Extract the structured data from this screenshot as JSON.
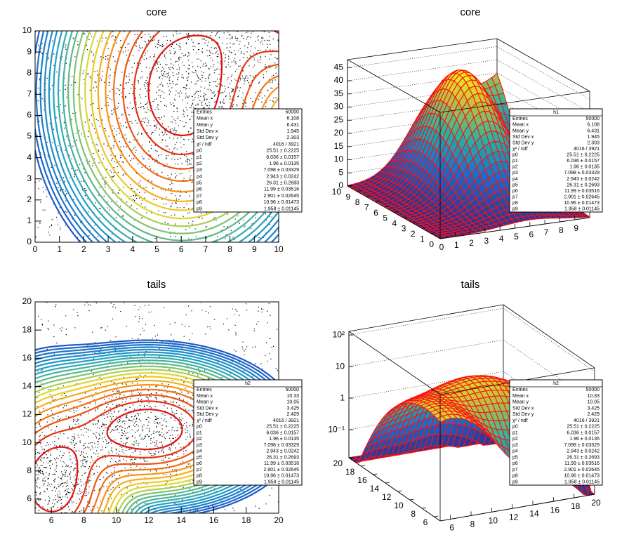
{
  "chart_data": [
    {
      "type": "contour",
      "title": "core",
      "xlim": [
        0,
        10
      ],
      "xticks": [
        0,
        1,
        2,
        3,
        4,
        5,
        6,
        7,
        8,
        9,
        10
      ],
      "ylim": [
        0,
        10
      ],
      "yticks": [
        0,
        1,
        2,
        3,
        4,
        5,
        6,
        7,
        8,
        9,
        10
      ],
      "stats": {
        "rows": [
          [
            "Entries",
            "50000"
          ],
          [
            "Mean x",
            "6.108"
          ],
          [
            "Mean y",
            "6.431"
          ],
          [
            "Std Dev x",
            "1.945"
          ],
          [
            "Std Dev y",
            "2.303"
          ],
          [
            "χ² / ndf",
            "4016 / 3921"
          ],
          [
            "p0",
            "25.51 ± 0.2225"
          ],
          [
            "p1",
            "6.036 ± 0.0157"
          ],
          [
            "p2",
            "1.96 ± 0.0135"
          ],
          [
            "p3",
            "7.098 ± 0.03329"
          ],
          [
            "p4",
            "2.943 ± 0.0242"
          ],
          [
            "p5",
            "26.31 ± 0.2693"
          ],
          [
            "p6",
            "11.99 ± 0.03516"
          ],
          [
            "p7",
            "2.901 ± 0.02645"
          ],
          [
            "p8",
            "10.96 ± 0.01473"
          ],
          [
            "p9",
            "1.958 ± 0.01145"
          ]
        ]
      }
    },
    {
      "type": "surface",
      "title": "core",
      "xlim": [
        0,
        10
      ],
      "xticks": [
        0,
        1,
        2,
        3,
        4,
        5,
        6,
        7,
        8,
        9
      ],
      "ylim": [
        0,
        10
      ],
      "yticks": [
        0,
        1,
        2,
        3,
        4,
        5,
        6,
        7,
        8,
        9,
        10
      ],
      "zlim": [
        0,
        48
      ],
      "zticks": [
        0,
        5,
        10,
        15,
        20,
        25,
        30,
        35,
        40,
        45
      ],
      "stats": {
        "title": "h1",
        "rows": [
          [
            "Entries",
            "50000"
          ],
          [
            "Mean x",
            "6.108"
          ],
          [
            "Mean y",
            "6.431"
          ],
          [
            "Std Dev x",
            "1.945"
          ],
          [
            "Std Dev y",
            "2.303"
          ],
          [
            "χ² / ndf",
            "4016 / 3921"
          ],
          [
            "p0",
            "25.51 ± 0.2225"
          ],
          [
            "p1",
            "6.036 ± 0.0157"
          ],
          [
            "p2",
            "1.96 ± 0.0135"
          ],
          [
            "p3",
            "7.098 ± 0.03329"
          ],
          [
            "p4",
            "2.943 ± 0.0242"
          ],
          [
            "p5",
            "26.31 ± 0.2693"
          ],
          [
            "p6",
            "11.99 ± 0.03516"
          ],
          [
            "p7",
            "2.901 ± 0.02645"
          ],
          [
            "p8",
            "10.96 ± 0.01473"
          ],
          [
            "p9",
            "1.958 ± 0.01145"
          ]
        ]
      }
    },
    {
      "type": "contour",
      "title": "tails",
      "xlim": [
        5,
        20
      ],
      "xticks": [
        6,
        8,
        10,
        12,
        14,
        16,
        18,
        20
      ],
      "ylim": [
        5,
        20
      ],
      "yticks": [
        6,
        8,
        10,
        12,
        14,
        16,
        18,
        20
      ],
      "stats": {
        "title": "h2",
        "rows": [
          [
            "Entries",
            "50000"
          ],
          [
            "Mean x",
            "10.33"
          ],
          [
            "Mean y",
            "10.05"
          ],
          [
            "Std Dev x",
            "3.425"
          ],
          [
            "Std Dev y",
            "2.429"
          ],
          [
            "χ² / ndf",
            "4016 / 3921"
          ],
          [
            "p0",
            "25.51 ± 0.2225"
          ],
          [
            "p1",
            "6.036 ± 0.0157"
          ],
          [
            "p2",
            "1.96 ± 0.0135"
          ],
          [
            "p3",
            "7.098 ± 0.03329"
          ],
          [
            "p4",
            "2.943 ± 0.0242"
          ],
          [
            "p5",
            "26.31 ± 0.2693"
          ],
          [
            "p6",
            "11.99 ± 0.03516"
          ],
          [
            "p7",
            "2.901 ± 0.02645"
          ],
          [
            "p8",
            "10.96 ± 0.01473"
          ],
          [
            "p9",
            "1.958 ± 0.01145"
          ]
        ]
      }
    },
    {
      "type": "surface",
      "title": "tails",
      "log_z": true,
      "xlim": [
        5,
        20
      ],
      "xticks": [
        6,
        8,
        10,
        12,
        14,
        16,
        18,
        20
      ],
      "ylim": [
        5,
        20
      ],
      "yticks": [
        6,
        8,
        10,
        12,
        14,
        16,
        18,
        20
      ],
      "zlim": [
        0.013,
        130
      ],
      "zticks": [
        {
          "value": 0.1,
          "label": "10⁻¹"
        },
        1,
        10,
        {
          "value": 100,
          "label": "10²"
        }
      ],
      "stats": {
        "title": "h2",
        "rows": [
          [
            "Entries",
            "50000"
          ],
          [
            "Mean x",
            "10.33"
          ],
          [
            "Mean y",
            "10.05"
          ],
          [
            "Std Dev x",
            "3.425"
          ],
          [
            "Std Dev y",
            "2.429"
          ],
          [
            "χ² / ndf",
            "4016 / 3921"
          ],
          [
            "p0",
            "25.51 ± 0.2225"
          ],
          [
            "p1",
            "6.036 ± 0.0157"
          ],
          [
            "p2",
            "1.96 ± 0.0135"
          ],
          [
            "p3",
            "7.098 ± 0.03329"
          ],
          [
            "p4",
            "2.943 ± 0.0242"
          ],
          [
            "p5",
            "26.31 ± 0.2693"
          ],
          [
            "p6",
            "11.99 ± 0.03516"
          ],
          [
            "p7",
            "2.901 ± 0.02645"
          ],
          [
            "p8",
            "10.96 ± 0.01473"
          ],
          [
            "p9",
            "1.958 ± 0.01145"
          ]
        ]
      }
    }
  ]
}
